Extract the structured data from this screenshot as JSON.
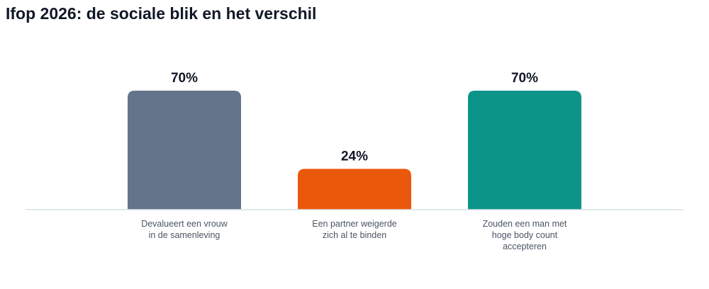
{
  "chart_data": {
    "type": "bar",
    "title": "Ifop 2026: de sociale blik en het verschil",
    "categories": [
      [
        "Devalueert een vrouw",
        "in de samenleving"
      ],
      [
        "Een partner weigerde",
        "zich al te binden"
      ],
      [
        "Zouden een man met",
        "hoge body count",
        "accepteren"
      ]
    ],
    "values": [
      70,
      24,
      70
    ],
    "value_labels": [
      "70%",
      "24%",
      "70%"
    ],
    "colors": [
      "#64748b",
      "#ea580c",
      "#0d9488"
    ],
    "xlabel": "",
    "ylabel": "",
    "ylim": [
      0,
      70
    ],
    "grid": false,
    "legend": "none"
  }
}
